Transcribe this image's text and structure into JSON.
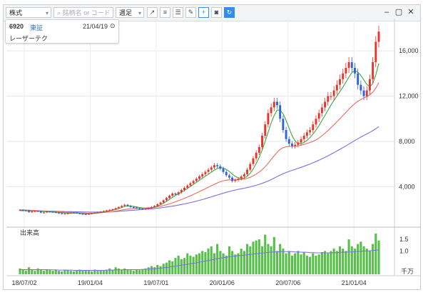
{
  "toolbar": {
    "asset_type": "株式",
    "search_placeholder": "銘柄名 or コード",
    "period": "週足",
    "window_controls": [
      "–",
      "▢",
      "✕"
    ]
  },
  "info_box": {
    "code": "6920",
    "market": "東証",
    "date": "21/04/19",
    "name": "レーザーテク"
  },
  "volume_panel": {
    "label": "出来高",
    "unit": "千万"
  },
  "colors": {
    "up": "#e8352b",
    "down": "#2f63d8",
    "ma_short": "#3ca83c",
    "ma_mid": "#f06a5a",
    "ma_long": "#7b6ce6",
    "volume": "#58bf4a"
  },
  "chart_data": [
    {
      "type": "candlestick",
      "title": "",
      "x_tick_labels": [
        "18/07/02",
        "19/01/04",
        "19/07/01",
        "20/01/06",
        "20/07/06",
        "21/01/04"
      ],
      "y_tick_labels": [
        "4,000",
        "8,000",
        "12,000",
        "16,000"
      ],
      "ylim": [
        800,
        18600
      ],
      "grid": true,
      "series": [
        {
          "kind": "close",
          "values": [
            1950,
            1880,
            1900,
            1750,
            1800,
            1850,
            1820,
            1700,
            1720,
            1800,
            1780,
            1750,
            1700,
            1650,
            1600,
            1620,
            1650,
            1700,
            1720,
            1650,
            1600,
            1580,
            1550,
            1600,
            1650,
            1700,
            1750,
            1800,
            1850,
            1900,
            1950,
            2000,
            2100,
            2200,
            2300,
            2400,
            2300,
            2200,
            2150,
            2100,
            2050,
            2000,
            2050,
            2100,
            2200,
            2300,
            2450,
            2600,
            2800,
            3000,
            3200,
            3400,
            3300,
            3500,
            3700,
            3900,
            4100,
            4300,
            4500,
            4700,
            4900,
            5100,
            5300,
            5500,
            5700,
            5900,
            5800,
            5600,
            5300,
            5000,
            4800,
            4500,
            4600,
            4700,
            4900,
            5100,
            5500,
            6000,
            6500,
            7000,
            7500,
            8500,
            9500,
            10500,
            11000,
            11500,
            11200,
            10000,
            9000,
            8200,
            7800,
            7600,
            7700,
            7900,
            8200,
            8500,
            8800,
            9000,
            9500,
            10000,
            10500,
            11000,
            11500,
            12000,
            12000,
            12500,
            13000,
            13500,
            14000,
            14500,
            15000,
            14500,
            14000,
            13000,
            12500,
            12000,
            12500,
            13500,
            15000,
            16800,
            17700
          ]
        },
        {
          "kind": "open",
          "values": [
            1900,
            1950,
            1880,
            1900,
            1750,
            1800,
            1850,
            1820,
            1700,
            1720,
            1800,
            1780,
            1750,
            1700,
            1650,
            1600,
            1620,
            1650,
            1700,
            1720,
            1650,
            1600,
            1580,
            1550,
            1600,
            1650,
            1700,
            1750,
            1800,
            1850,
            1900,
            1950,
            2000,
            2100,
            2200,
            2300,
            2400,
            2300,
            2200,
            2150,
            2100,
            2050,
            2000,
            2050,
            2100,
            2200,
            2300,
            2450,
            2600,
            2800,
            3000,
            3200,
            3400,
            3300,
            3500,
            3700,
            3900,
            4100,
            4300,
            4500,
            4700,
            4900,
            5100,
            5300,
            5500,
            5700,
            5900,
            5800,
            5600,
            5300,
            5000,
            4800,
            4500,
            4600,
            4700,
            4900,
            5100,
            5500,
            6000,
            6500,
            7000,
            7500,
            8500,
            9500,
            10500,
            11000,
            11500,
            11200,
            10000,
            9000,
            8200,
            7800,
            7600,
            7700,
            7900,
            8200,
            8500,
            8800,
            9000,
            9500,
            10000,
            10500,
            11000,
            11500,
            12000,
            12000,
            12500,
            13000,
            13500,
            14000,
            14500,
            15000,
            14500,
            14000,
            13000,
            12500,
            12000,
            12500,
            13500,
            15000,
            16800
          ]
        },
        {
          "name": "",
          "kind": "ma_short",
          "values": [
            1900,
            1910,
            1900,
            1880,
            1860,
            1850,
            1840,
            1820,
            1800,
            1780,
            1770,
            1760,
            1740,
            1720,
            1700,
            1680,
            1660,
            1650,
            1650,
            1650,
            1640,
            1620,
            1600,
            1600,
            1610,
            1640,
            1680,
            1720,
            1770,
            1820,
            1870,
            1920,
            1980,
            2060,
            2150,
            2250,
            2290,
            2290,
            2260,
            2210,
            2160,
            2110,
            2080,
            2080,
            2120,
            2180,
            2280,
            2400,
            2540,
            2700,
            2880,
            3060,
            3230,
            3360,
            3500,
            3660,
            3840,
            4020,
            4200,
            4380,
            4560,
            4740,
            4920,
            5100,
            5280,
            5460,
            5610,
            5680,
            5640,
            5520,
            5350,
            5110,
            4900,
            4780,
            4720,
            4760,
            4920,
            5180,
            5560,
            6030,
            6580,
            7240,
            7990,
            8810,
            9620,
            10290,
            10760,
            10780,
            10440,
            9860,
            9160,
            8520,
            8050,
            7820,
            7800,
            7900,
            8090,
            8350,
            8650,
            9000,
            9400,
            9850,
            10300,
            10750,
            11200,
            11620,
            12010,
            12400,
            12800,
            13230,
            13670,
            14080,
            14260,
            14110,
            13820,
            13430,
            13030,
            12840,
            13100,
            13870,
            14890
          ]
        },
        {
          "name": "",
          "kind": "ma_mid",
          "values": [
            1950,
            1940,
            1930,
            1920,
            1900,
            1890,
            1880,
            1860,
            1850,
            1830,
            1820,
            1800,
            1790,
            1770,
            1750,
            1740,
            1720,
            1710,
            1700,
            1690,
            1680,
            1670,
            1660,
            1650,
            1650,
            1660,
            1670,
            1690,
            1710,
            1740,
            1770,
            1800,
            1840,
            1880,
            1930,
            1980,
            2020,
            2050,
            2070,
            2080,
            2090,
            2100,
            2110,
            2130,
            2150,
            2180,
            2220,
            2270,
            2330,
            2400,
            2480,
            2570,
            2660,
            2760,
            2860,
            2970,
            3080,
            3190,
            3310,
            3430,
            3560,
            3690,
            3820,
            3950,
            4080,
            4210,
            4330,
            4440,
            4520,
            4570,
            4600,
            4600,
            4600,
            4610,
            4630,
            4670,
            4740,
            4830,
            4960,
            5110,
            5290,
            5500,
            5760,
            6060,
            6390,
            6730,
            7040,
            7290,
            7440,
            7520,
            7550,
            7560,
            7580,
            7610,
            7660,
            7730,
            7810,
            7900,
            8000,
            8130,
            8300,
            8500,
            8720,
            8960,
            9200,
            9460,
            9730,
            10000,
            10280,
            10560,
            10840,
            11110,
            11350,
            11550,
            11710,
            11840,
            11960,
            12110,
            12350,
            12700,
            13200
          ]
        },
        {
          "name": "",
          "kind": "ma_long",
          "values": [
            1880,
            1880,
            1870,
            1870,
            1860,
            1860,
            1850,
            1850,
            1840,
            1840,
            1830,
            1830,
            1820,
            1810,
            1810,
            1800,
            1790,
            1790,
            1780,
            1770,
            1770,
            1760,
            1760,
            1750,
            1750,
            1750,
            1750,
            1760,
            1760,
            1770,
            1780,
            1790,
            1800,
            1820,
            1840,
            1860,
            1880,
            1900,
            1920,
            1940,
            1960,
            1980,
            2000,
            2020,
            2040,
            2070,
            2100,
            2130,
            2160,
            2200,
            2240,
            2280,
            2320,
            2370,
            2420,
            2470,
            2530,
            2590,
            2650,
            2720,
            2790,
            2860,
            2940,
            3020,
            3100,
            3180,
            3260,
            3340,
            3420,
            3500,
            3570,
            3640,
            3700,
            3760,
            3810,
            3860,
            3920,
            3980,
            4050,
            4120,
            4200,
            4290,
            4390,
            4500,
            4620,
            4750,
            4890,
            5020,
            5140,
            5250,
            5350,
            5440,
            5530,
            5620,
            5710,
            5800,
            5900,
            6000,
            6110,
            6220,
            6340,
            6460,
            6590,
            6720,
            6860,
            7000,
            7150,
            7300,
            7450,
            7600,
            7760,
            7920,
            8080,
            8230,
            8380,
            8520,
            8660,
            8800,
            8950,
            9110,
            9300
          ]
        }
      ]
    },
    {
      "type": "bar",
      "title": "",
      "y_tick_labels": [
        "1.0",
        "1.5"
      ],
      "ylim": [
        0,
        1.9
      ],
      "series": [
        {
          "name": "",
          "kind": "volume",
          "values": [
            0.25,
            0.2,
            0.15,
            0.3,
            0.2,
            0.15,
            0.25,
            0.2,
            0.15,
            0.2,
            0.18,
            0.15,
            0.2,
            0.15,
            0.12,
            0.2,
            0.18,
            0.15,
            0.12,
            0.15,
            0.2,
            0.15,
            0.18,
            0.15,
            0.12,
            0.2,
            0.15,
            0.18,
            0.15,
            0.2,
            0.25,
            0.2,
            0.3,
            0.25,
            0.2,
            0.25,
            0.2,
            0.18,
            0.15,
            0.2,
            0.18,
            0.22,
            0.25,
            0.3,
            0.35,
            0.3,
            0.4,
            0.35,
            0.45,
            0.5,
            0.6,
            0.55,
            0.7,
            0.8,
            0.65,
            0.7,
            0.9,
            0.8,
            0.75,
            0.85,
            0.9,
            1.0,
            0.95,
            1.1,
            1.2,
            0.9,
            1.3,
            1.0,
            0.9,
            0.8,
            1.2,
            1.0,
            0.85,
            0.9,
            1.1,
            1.0,
            1.3,
            1.2,
            1.4,
            1.45,
            1.5,
            1.2,
            1.7,
            1.3,
            1.2,
            1.6,
            1.0,
            1.3,
            1.1,
            0.9,
            1.0,
            0.8,
            0.9,
            1.0,
            0.85,
            0.95,
            0.8,
            0.75,
            0.9,
            0.8,
            0.85,
            0.95,
            1.0,
            0.9,
            1.0,
            1.1,
            1.0,
            1.2,
            1.1,
            1.0,
            1.5,
            1.2,
            1.1,
            1.3,
            1.4,
            1.2,
            1.1,
            1.0,
            1.3,
            1.75,
            1.45
          ]
        },
        {
          "name": "",
          "kind": "volume_ma_long",
          "values": [
            0.2,
            0.2,
            0.2,
            0.2,
            0.2,
            0.2,
            0.2,
            0.2,
            0.2,
            0.2,
            0.19,
            0.19,
            0.19,
            0.18,
            0.18,
            0.18,
            0.18,
            0.18,
            0.17,
            0.17,
            0.17,
            0.17,
            0.17,
            0.17,
            0.17,
            0.17,
            0.17,
            0.17,
            0.17,
            0.18,
            0.18,
            0.18,
            0.19,
            0.19,
            0.19,
            0.2,
            0.2,
            0.2,
            0.2,
            0.2,
            0.2,
            0.21,
            0.21,
            0.22,
            0.23,
            0.24,
            0.25,
            0.26,
            0.28,
            0.29,
            0.31,
            0.33,
            0.35,
            0.37,
            0.39,
            0.41,
            0.43,
            0.45,
            0.47,
            0.49,
            0.52,
            0.54,
            0.57,
            0.59,
            0.62,
            0.64,
            0.67,
            0.69,
            0.71,
            0.73,
            0.75,
            0.77,
            0.78,
            0.8,
            0.81,
            0.82,
            0.84,
            0.85,
            0.87,
            0.88,
            0.9,
            0.91,
            0.92,
            0.94,
            0.95,
            0.96,
            0.96,
            0.97,
            0.97,
            0.97,
            0.97,
            0.97,
            0.96,
            0.96,
            0.95,
            0.95,
            0.94,
            0.93,
            0.93,
            0.92,
            0.92,
            0.92,
            0.92,
            0.92,
            0.92,
            0.93,
            0.93,
            0.94,
            0.94,
            0.95,
            0.96,
            0.96,
            0.97,
            0.98,
            0.99,
            1.0,
            1.0,
            1.01,
            1.02,
            1.04,
            1.05
          ]
        }
      ]
    }
  ]
}
